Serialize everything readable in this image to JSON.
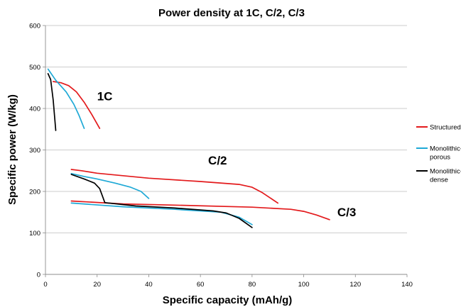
{
  "chart_data": {
    "type": "line",
    "title": "Power density at 1C, C/2, C/3",
    "xlabel": "Specific capacity (mAh/g)",
    "ylabel": "Specific power (W/kg)",
    "xlim": [
      0,
      140
    ],
    "ylim": [
      0,
      600
    ],
    "xticks": [
      0,
      20,
      40,
      60,
      80,
      100,
      120,
      140
    ],
    "yticks": [
      0,
      100,
      200,
      300,
      400,
      500,
      600
    ],
    "grid": "horizontal",
    "legend_position": "right",
    "series": [
      {
        "name": "Structured",
        "color": "#e31a1c",
        "curves": [
          [
            [
              3,
              465
            ],
            [
              6,
              462
            ],
            [
              9,
              455
            ],
            [
              12,
              440
            ],
            [
              15,
              415
            ],
            [
              18,
              385
            ],
            [
              21,
              352
            ]
          ],
          [
            [
              10,
              253
            ],
            [
              14,
              250
            ],
            [
              20,
              244
            ],
            [
              40,
              232
            ],
            [
              60,
              224
            ],
            [
              75,
              217
            ],
            [
              80,
              210
            ],
            [
              84,
              197
            ],
            [
              90,
              172
            ]
          ],
          [
            [
              10,
              177
            ],
            [
              30,
              170
            ],
            [
              50,
              167
            ],
            [
              80,
              162
            ],
            [
              95,
              157
            ],
            [
              100,
              152
            ],
            [
              105,
              143
            ],
            [
              110,
              132
            ]
          ]
        ]
      },
      {
        "name": "Monolithic-porous",
        "color": "#1fa9d6",
        "curves": [
          [
            [
              1,
              495
            ],
            [
              4,
              468
            ],
            [
              8,
              440
            ],
            [
              11,
              410
            ],
            [
              13,
              383
            ],
            [
              15,
              352
            ]
          ],
          [
            [
              10,
              243
            ],
            [
              15,
              236
            ],
            [
              20,
              230
            ],
            [
              27,
              220
            ],
            [
              33,
              210
            ],
            [
              37,
              200
            ],
            [
              40,
              183
            ]
          ],
          [
            [
              10,
              172
            ],
            [
              30,
              163
            ],
            [
              50,
              157
            ],
            [
              68,
              150
            ],
            [
              75,
              138
            ],
            [
              80,
              120
            ]
          ]
        ]
      },
      {
        "name": "Monolithic-dense",
        "color": "#000000",
        "curves": [
          [
            [
              1,
              484
            ],
            [
              2,
              470
            ],
            [
              3,
              420
            ],
            [
              4,
              347
            ]
          ],
          [
            [
              10,
              241
            ],
            [
              15,
              230
            ],
            [
              19,
              220
            ],
            [
              21,
              207
            ],
            [
              22,
              190
            ],
            [
              23,
              173
            ]
          ],
          [
            [
              23,
              173
            ],
            [
              35,
              165
            ],
            [
              50,
              160
            ],
            [
              65,
              153
            ],
            [
              70,
              148
            ],
            [
              75,
              135
            ],
            [
              80,
              113
            ]
          ]
        ]
      }
    ],
    "annotations": [
      {
        "text": "1C",
        "x": 20,
        "y": 420
      },
      {
        "text": "C/2",
        "x": 63,
        "y": 265
      },
      {
        "text": "C/3",
        "x": 113,
        "y": 140
      }
    ],
    "legend_labels": [
      {
        "lines": [
          "Structured"
        ]
      },
      {
        "lines": [
          "Monolithic-",
          "porous"
        ]
      },
      {
        "lines": [
          "Monolithic-",
          "dense"
        ]
      }
    ]
  }
}
